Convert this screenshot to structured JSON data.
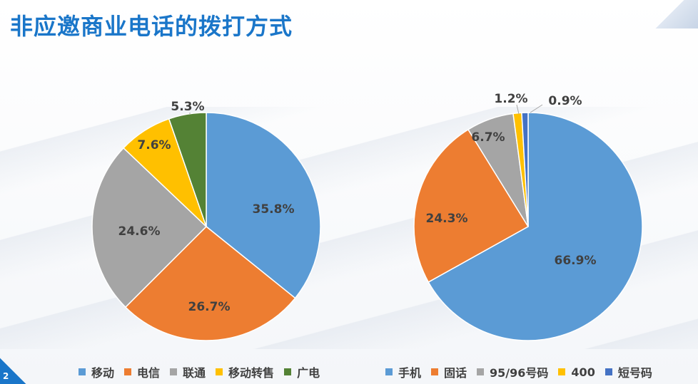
{
  "title": "非应邀商业电话的拨打方式",
  "page_number": "2",
  "chart_data": [
    {
      "type": "pie",
      "categories": [
        "移动",
        "电信",
        "联通",
        "移动转售",
        "广电"
      ],
      "values": [
        35.8,
        26.7,
        24.6,
        7.6,
        5.3
      ],
      "data_labels": [
        "35.8%",
        "26.7%",
        "24.6%",
        "7.6%",
        "5.3%"
      ],
      "colors": [
        "#5b9bd5",
        "#ed7d31",
        "#a5a5a5",
        "#ffc000",
        "#548235"
      ],
      "legend_position": "bottom"
    },
    {
      "type": "pie",
      "categories": [
        "手机",
        "固话",
        "95/96号码",
        "400",
        "短号码"
      ],
      "values": [
        66.9,
        24.3,
        6.7,
        1.2,
        0.9
      ],
      "data_labels": [
        "66.9%",
        "24.3%",
        "6.7%",
        "1.2%",
        "0.9%"
      ],
      "colors": [
        "#5b9bd5",
        "#ed7d31",
        "#a5a5a5",
        "#ffc000",
        "#4472c4"
      ],
      "legend_position": "bottom"
    }
  ]
}
